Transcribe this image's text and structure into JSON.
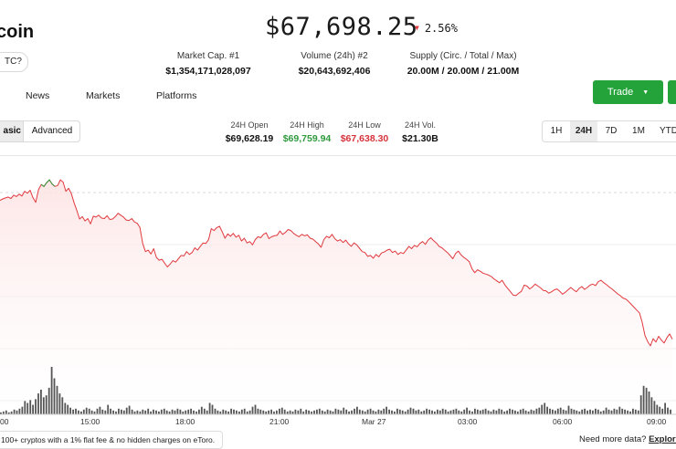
{
  "header": {
    "coin_name": "coin",
    "ticker_pill": "TC?",
    "price": "$67,698.25",
    "change": "2.56%",
    "change_color": "#e0393e"
  },
  "stats": [
    {
      "label": "Market Cap. #1",
      "value": "$1,354,171,028,097"
    },
    {
      "label": "Volume (24h) #2",
      "value": "$20,643,692,406"
    },
    {
      "label": "Supply (Circ. / Total / Max)",
      "value": "20.00M / 20.00M / 21.00M"
    }
  ],
  "tabs": [
    "News",
    "Markets",
    "Platforms"
  ],
  "trade_button": "Trade",
  "view_toggle": {
    "basic": "asic",
    "advanced": "Advanced"
  },
  "kpis": [
    {
      "label": "24H Open",
      "value": "$69,628.19",
      "color": "#111111"
    },
    {
      "label": "24H High",
      "value": "$69,759.94",
      "color": "#2e9a3c"
    },
    {
      "label": "24H Low",
      "value": "$67,638.30",
      "color": "#d6333a"
    },
    {
      "label": "24H Vol.",
      "value": "$21.30B",
      "color": "#111111"
    }
  ],
  "ranges": [
    "1H",
    "24H",
    "7D",
    "1M",
    "YTD"
  ],
  "active_range": "24H",
  "chart_data": {
    "type": "line",
    "x_ticks": [
      "00",
      "15:00",
      "18:00",
      "21:00",
      "Mar 27",
      "03:00",
      "06:00",
      "09:00"
    ],
    "price_series": [
      0.49,
      0.52,
      0.54,
      0.56,
      0.53,
      0.6,
      0.57,
      0.62,
      0.58,
      0.68,
      0.64,
      0.7,
      0.55,
      0.45,
      0.71,
      0.82,
      0.78,
      0.86,
      0.92,
      0.83,
      0.78,
      0.8,
      0.92,
      0.87,
      0.68,
      0.74,
      0.63,
      0.44,
      0.28,
      0.1,
      0.15,
      0.06,
      0.11,
      0.0,
      0.16,
      0.14,
      0.18,
      0.12,
      0.11,
      0.17,
      0.09,
      0.1,
      0.15,
      0.22,
      0.18,
      0.14,
      0.08,
      0.07,
      0.11,
      0.04,
      0.01,
      -0.08,
      -0.41,
      -0.58,
      -0.55,
      -0.63,
      -0.52,
      -0.7,
      -0.76,
      -0.74,
      -0.82,
      -0.9,
      -0.84,
      -0.77,
      -0.8,
      -0.73,
      -0.66,
      -0.67,
      -0.58,
      -0.64,
      -0.6,
      -0.5,
      -0.55,
      -0.47,
      -0.4,
      -0.41,
      -0.33,
      -0.1,
      -0.14,
      -0.08,
      -0.05,
      -0.17,
      -0.3,
      -0.21,
      -0.26,
      -0.2,
      -0.28,
      -0.24,
      -0.36,
      -0.3,
      -0.4,
      -0.37,
      -0.44,
      -0.33,
      -0.27,
      -0.29,
      -0.22,
      -0.19,
      -0.31,
      -0.27,
      -0.25,
      -0.24,
      -0.15,
      -0.22,
      -0.18,
      -0.12,
      -0.14,
      -0.2,
      -0.24,
      -0.27,
      -0.22,
      -0.25,
      -0.23,
      -0.3,
      -0.32,
      -0.37,
      -0.42,
      -0.49,
      -0.33,
      -0.26,
      -0.29,
      -0.22,
      -0.31,
      -0.36,
      -0.33,
      -0.39,
      -0.34,
      -0.42,
      -0.47,
      -0.4,
      -0.44,
      -0.51,
      -0.58,
      -0.6,
      -0.68,
      -0.66,
      -0.72,
      -0.64,
      -0.69,
      -0.61,
      -0.59,
      -0.55,
      -0.53,
      -0.6,
      -0.57,
      -0.64,
      -0.6,
      -0.62,
      -0.55,
      -0.47,
      -0.52,
      -0.45,
      -0.48,
      -0.41,
      -0.37,
      -0.43,
      -0.34,
      -0.29,
      -0.35,
      -0.4,
      -0.47,
      -0.5,
      -0.55,
      -0.6,
      -0.66,
      -0.73,
      -0.62,
      -0.57,
      -0.65,
      -0.7,
      -0.74,
      -0.79,
      -0.94,
      -1.02,
      -0.96,
      -0.99,
      -1.03,
      -1.05,
      -1.07,
      -1.1,
      -1.15,
      -1.19,
      -1.23,
      -1.18,
      -1.28,
      -1.35,
      -1.42,
      -1.49,
      -1.5,
      -1.45,
      -1.41,
      -1.28,
      -1.3,
      -1.36,
      -1.32,
      -1.26,
      -1.3,
      -1.34,
      -1.39,
      -1.4,
      -1.45,
      -1.42,
      -1.38,
      -1.36,
      -1.41,
      -1.47,
      -1.43,
      -1.38,
      -1.33,
      -1.38,
      -1.42,
      -1.35,
      -1.31,
      -1.37,
      -1.33,
      -1.28,
      -1.26,
      -1.29,
      -1.21,
      -1.18,
      -1.23,
      -1.27,
      -1.32,
      -1.36,
      -1.41,
      -1.46,
      -1.5,
      -1.55,
      -1.57,
      -1.62,
      -1.68,
      -1.74,
      -1.8,
      -1.86,
      -2.06,
      -2.33,
      -2.46,
      -2.55,
      -2.4,
      -2.47,
      -2.35,
      -2.43,
      -2.49,
      -2.38,
      -2.3,
      -2.41
    ],
    "volume_series": [
      2,
      3,
      4,
      2,
      3,
      5,
      4,
      6,
      8,
      14,
      12,
      15,
      10,
      16,
      22,
      26,
      18,
      20,
      28,
      50,
      38,
      30,
      22,
      18,
      12,
      10,
      7,
      5,
      6,
      4,
      3,
      5,
      7,
      6,
      4,
      3,
      6,
      8,
      5,
      4,
      10,
      6,
      4,
      3,
      6,
      5,
      4,
      7,
      9,
      5,
      3,
      4,
      3,
      5,
      4,
      6,
      3,
      5,
      4,
      3,
      5,
      6,
      4,
      3,
      5,
      4,
      6,
      5,
      3,
      4,
      5,
      6,
      4,
      3,
      5,
      8,
      6,
      4,
      12,
      10,
      6,
      4,
      3,
      5,
      4,
      3,
      6,
      5,
      4,
      3,
      5,
      6,
      3,
      4,
      8,
      10,
      6,
      5,
      4,
      3,
      4,
      5,
      3,
      4,
      6,
      7,
      5,
      3,
      4,
      3,
      5,
      4,
      6,
      3,
      5,
      4,
      3,
      4,
      5,
      6,
      4,
      3,
      5,
      4,
      3,
      6,
      5,
      4,
      7,
      5,
      3,
      4,
      6,
      8,
      5,
      4,
      3,
      5,
      6,
      4,
      3,
      5,
      4,
      6,
      8,
      5,
      4,
      3,
      6,
      5,
      4,
      3,
      5,
      7,
      6,
      4,
      5,
      3,
      4,
      6,
      5,
      4,
      3,
      5,
      4,
      6,
      5,
      3,
      4,
      5,
      6,
      4,
      3,
      5,
      7,
      4,
      3,
      6,
      5,
      4,
      5,
      6,
      4,
      3,
      5,
      4,
      6,
      5,
      3,
      4,
      6,
      5,
      4,
      3,
      5,
      6,
      4,
      3,
      5,
      4,
      6,
      7,
      10,
      12,
      8,
      6,
      5,
      4,
      6,
      7,
      5,
      4,
      9,
      6,
      5,
      4,
      3,
      5,
      6,
      4,
      5,
      4,
      6,
      5,
      3,
      4,
      7,
      5,
      4,
      6,
      5,
      8,
      6,
      5,
      4,
      3,
      6,
      5,
      4,
      20,
      30,
      28,
      24,
      18,
      14,
      10,
      8,
      6,
      12,
      7,
      5
    ],
    "high_marker_color": "#2e9a3c",
    "line_color": "#e0393e",
    "volume_color": "#555555"
  },
  "footer": {
    "banner": "100+ cryptos with a 1% flat fee & no hidden charges on eToro.",
    "more_data_prefix": "Need more data?",
    "more_data_link": "Explore"
  }
}
